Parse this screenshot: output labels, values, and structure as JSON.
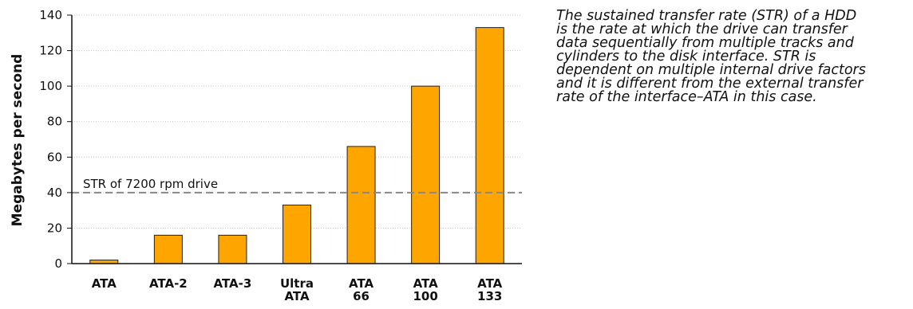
{
  "chart_data": {
    "type": "bar",
    "categories": [
      [
        "ATA"
      ],
      [
        "ATA-2"
      ],
      [
        "ATA-3"
      ],
      [
        "Ultra",
        "ATA"
      ],
      [
        "ATA",
        "66"
      ],
      [
        "ATA",
        "100"
      ],
      [
        "ATA",
        "133"
      ]
    ],
    "values": [
      2,
      16,
      16,
      33,
      66,
      100,
      133
    ],
    "ylabel": "Megabytes per second",
    "ylim": [
      0,
      140
    ],
    "yticks": [
      "0",
      "20",
      "40",
      "60",
      "80",
      "100",
      "120",
      "140"
    ],
    "ytick_values": [
      0,
      20,
      40,
      60,
      80,
      100,
      120,
      140
    ],
    "grid": true,
    "bar_color": "#FFA500",
    "reference_line": {
      "value": 40,
      "label": "STR of 7200 rpm drive"
    }
  },
  "caption": {
    "lines": [
      "The sustained transfer rate (STR) of a HDD",
      "is the rate at which the drive can transfer",
      "data sequentially from multiple tracks and",
      "cylinders to the disk interface. STR is",
      "dependent on multiple internal drive factors",
      "and it is different from the external transfer",
      "rate of the interface–ATA in this case."
    ]
  }
}
